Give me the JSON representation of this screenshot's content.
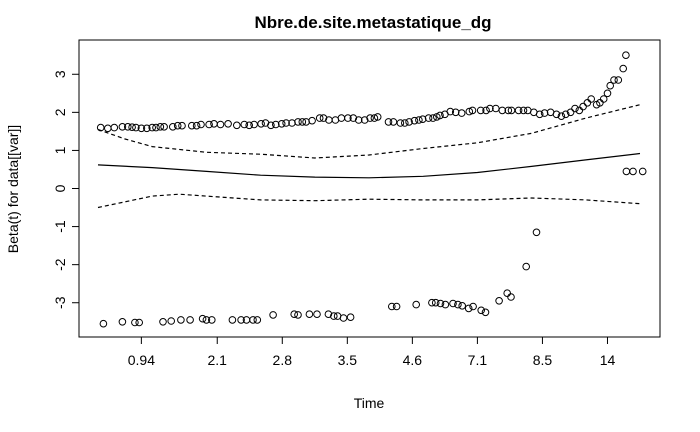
{
  "chart_data": {
    "type": "scatter",
    "title": "Nbre.de.site.metastatique_dg",
    "xlabel": "Time",
    "ylabel": "Beta(t) for data[[var]]",
    "x_scale": "rank-transformed",
    "xlim": [
      0,
      100
    ],
    "ylim": [
      -3.9,
      3.9
    ],
    "x_ticks": [
      {
        "value": 8,
        "label": "0.94"
      },
      {
        "value": 22,
        "label": "2.1"
      },
      {
        "value": 34,
        "label": "2.8"
      },
      {
        "value": 46,
        "label": "3.5"
      },
      {
        "value": 58,
        "label": "4.6"
      },
      {
        "value": 70,
        "label": "7.1"
      },
      {
        "value": 82,
        "label": "8.5"
      },
      {
        "value": 94,
        "label": "14"
      }
    ],
    "y_ticks": [
      {
        "value": -3,
        "label": "-3"
      },
      {
        "value": -2,
        "label": "-2"
      },
      {
        "value": -1,
        "label": "-1"
      },
      {
        "value": 0,
        "label": "0"
      },
      {
        "value": 1,
        "label": "1"
      },
      {
        "value": 2,
        "label": "2"
      },
      {
        "value": 3,
        "label": "3"
      }
    ],
    "grid": false,
    "legend": "none",
    "series": [
      {
        "style": "points",
        "points_upper": [
          [
            0.5,
            1.6
          ],
          [
            1.8,
            1.58
          ],
          [
            3.0,
            1.6
          ],
          [
            4.5,
            1.62
          ],
          [
            5.5,
            1.62
          ],
          [
            6.3,
            1.61
          ],
          [
            7.0,
            1.6
          ],
          [
            8.0,
            1.58
          ],
          [
            9.0,
            1.58
          ],
          [
            10.0,
            1.6
          ],
          [
            10.7,
            1.6
          ],
          [
            11.5,
            1.62
          ],
          [
            12.2,
            1.62
          ],
          [
            13.8,
            1.62
          ],
          [
            14.7,
            1.65
          ],
          [
            15.5,
            1.65
          ],
          [
            17.3,
            1.65
          ],
          [
            18.2,
            1.65
          ],
          [
            19.0,
            1.68
          ],
          [
            20.5,
            1.68
          ],
          [
            21.4,
            1.7
          ],
          [
            22.6,
            1.68
          ],
          [
            24.0,
            1.7
          ],
          [
            25.6,
            1.66
          ],
          [
            27.0,
            1.68
          ],
          [
            27.9,
            1.66
          ],
          [
            28.8,
            1.68
          ],
          [
            30.1,
            1.7
          ],
          [
            30.9,
            1.72
          ],
          [
            31.9,
            1.66
          ],
          [
            32.8,
            1.68
          ],
          [
            33.9,
            1.7
          ],
          [
            34.7,
            1.72
          ],
          [
            35.8,
            1.72
          ],
          [
            36.9,
            1.75
          ],
          [
            37.7,
            1.75
          ],
          [
            38.4,
            1.75
          ],
          [
            39.5,
            1.78
          ],
          [
            40.9,
            1.85
          ],
          [
            41.6,
            1.85
          ],
          [
            42.6,
            1.8
          ],
          [
            43.8,
            1.8
          ],
          [
            44.9,
            1.85
          ],
          [
            46.1,
            1.85
          ],
          [
            47.1,
            1.85
          ],
          [
            48.1,
            1.8
          ],
          [
            49.2,
            1.8
          ],
          [
            50.2,
            1.85
          ],
          [
            51.0,
            1.85
          ],
          [
            51.6,
            1.88
          ],
          [
            53.6,
            1.75
          ],
          [
            54.5,
            1.75
          ],
          [
            55.8,
            1.72
          ],
          [
            56.6,
            1.72
          ],
          [
            57.4,
            1.75
          ],
          [
            58.4,
            1.78
          ],
          [
            59.2,
            1.8
          ],
          [
            59.9,
            1.82
          ],
          [
            61.0,
            1.85
          ],
          [
            61.8,
            1.85
          ],
          [
            62.5,
            1.88
          ],
          [
            63.1,
            1.92
          ],
          [
            64.0,
            1.95
          ],
          [
            65.0,
            2.02
          ],
          [
            66.0,
            2.0
          ],
          [
            67.1,
            1.98
          ],
          [
            68.5,
            2.02
          ],
          [
            69.1,
            2.05
          ],
          [
            70.6,
            2.05
          ],
          [
            71.6,
            2.05
          ],
          [
            72.3,
            2.1
          ],
          [
            73.4,
            2.1
          ],
          [
            74.6,
            2.05
          ],
          [
            75.7,
            2.05
          ],
          [
            76.3,
            2.05
          ],
          [
            77.6,
            2.05
          ],
          [
            78.5,
            2.05
          ],
          [
            79.3,
            2.05
          ],
          [
            80.4,
            2.0
          ],
          [
            81.5,
            1.95
          ],
          [
            82.4,
            1.98
          ],
          [
            83.5,
            2.0
          ],
          [
            84.6,
            1.95
          ],
          [
            85.5,
            1.9
          ],
          [
            86.3,
            1.95
          ],
          [
            87.2,
            2.0
          ],
          [
            88.0,
            2.1
          ],
          [
            88.8,
            2.05
          ],
          [
            89.5,
            2.15
          ],
          [
            90.3,
            2.25
          ],
          [
            91.0,
            2.35
          ],
          [
            92.0,
            2.2
          ],
          [
            92.6,
            2.25
          ],
          [
            93.3,
            2.35
          ],
          [
            94.0,
            2.5
          ],
          [
            94.5,
            2.7
          ],
          [
            95.2,
            2.85
          ],
          [
            96.0,
            2.85
          ],
          [
            96.9,
            3.15
          ],
          [
            97.4,
            3.5
          ]
        ],
        "points_lower": [
          [
            1.0,
            -3.55
          ],
          [
            4.5,
            -3.5
          ],
          [
            6.8,
            -3.52
          ],
          [
            7.6,
            -3.52
          ],
          [
            12.0,
            -3.5
          ],
          [
            13.5,
            -3.48
          ],
          [
            15.3,
            -3.45
          ],
          [
            17.0,
            -3.45
          ],
          [
            19.3,
            -3.42
          ],
          [
            20.0,
            -3.45
          ],
          [
            21.0,
            -3.45
          ],
          [
            24.8,
            -3.45
          ],
          [
            26.4,
            -3.45
          ],
          [
            27.4,
            -3.45
          ],
          [
            28.6,
            -3.45
          ],
          [
            29.4,
            -3.45
          ],
          [
            32.3,
            -3.32
          ],
          [
            36.2,
            -3.3
          ],
          [
            36.9,
            -3.32
          ],
          [
            39.0,
            -3.3
          ],
          [
            40.4,
            -3.3
          ],
          [
            42.5,
            -3.3
          ],
          [
            43.5,
            -3.35
          ],
          [
            44.2,
            -3.35
          ],
          [
            45.3,
            -3.4
          ],
          [
            46.6,
            -3.38
          ],
          [
            54.2,
            -3.1
          ],
          [
            55.1,
            -3.1
          ],
          [
            58.7,
            -3.05
          ],
          [
            61.6,
            -3.0
          ],
          [
            62.3,
            -3.0
          ],
          [
            63.2,
            -3.02
          ],
          [
            64.1,
            -3.05
          ],
          [
            65.5,
            -3.02
          ],
          [
            66.4,
            -3.05
          ],
          [
            67.2,
            -3.08
          ],
          [
            68.4,
            -3.15
          ],
          [
            69.2,
            -3.1
          ],
          [
            70.7,
            -3.2
          ],
          [
            71.5,
            -3.25
          ],
          [
            74.0,
            -2.95
          ],
          [
            75.5,
            -2.75
          ],
          [
            76.2,
            -2.85
          ],
          [
            79.0,
            -2.05
          ],
          [
            80.9,
            -1.15
          ]
        ],
        "points_right": [
          [
            97.5,
            0.45
          ],
          [
            98.7,
            0.45
          ],
          [
            100.5,
            0.45
          ]
        ]
      },
      {
        "style": "solid",
        "name_hidden": "fit",
        "points": [
          [
            0,
            0.62
          ],
          [
            10,
            0.55
          ],
          [
            20,
            0.45
          ],
          [
            30,
            0.35
          ],
          [
            40,
            0.3
          ],
          [
            50,
            0.28
          ],
          [
            60,
            0.32
          ],
          [
            70,
            0.42
          ],
          [
            80,
            0.58
          ],
          [
            90,
            0.75
          ],
          [
            100,
            0.92
          ]
        ]
      },
      {
        "style": "dashed",
        "points": [
          [
            0,
            1.55
          ],
          [
            5,
            1.3
          ],
          [
            10,
            1.1
          ],
          [
            20,
            0.95
          ],
          [
            30,
            0.9
          ],
          [
            40,
            0.8
          ],
          [
            50,
            0.88
          ],
          [
            60,
            1.05
          ],
          [
            70,
            1.2
          ],
          [
            80,
            1.45
          ],
          [
            90,
            1.85
          ],
          [
            100,
            2.2
          ]
        ]
      },
      {
        "style": "dashed",
        "points": [
          [
            0,
            -0.5
          ],
          [
            5,
            -0.35
          ],
          [
            10,
            -0.2
          ],
          [
            15,
            -0.15
          ],
          [
            20,
            -0.2
          ],
          [
            30,
            -0.3
          ],
          [
            40,
            -0.32
          ],
          [
            50,
            -0.28
          ],
          [
            60,
            -0.3
          ],
          [
            70,
            -0.3
          ],
          [
            80,
            -0.25
          ],
          [
            90,
            -0.3
          ],
          [
            100,
            -0.4
          ]
        ]
      }
    ]
  }
}
